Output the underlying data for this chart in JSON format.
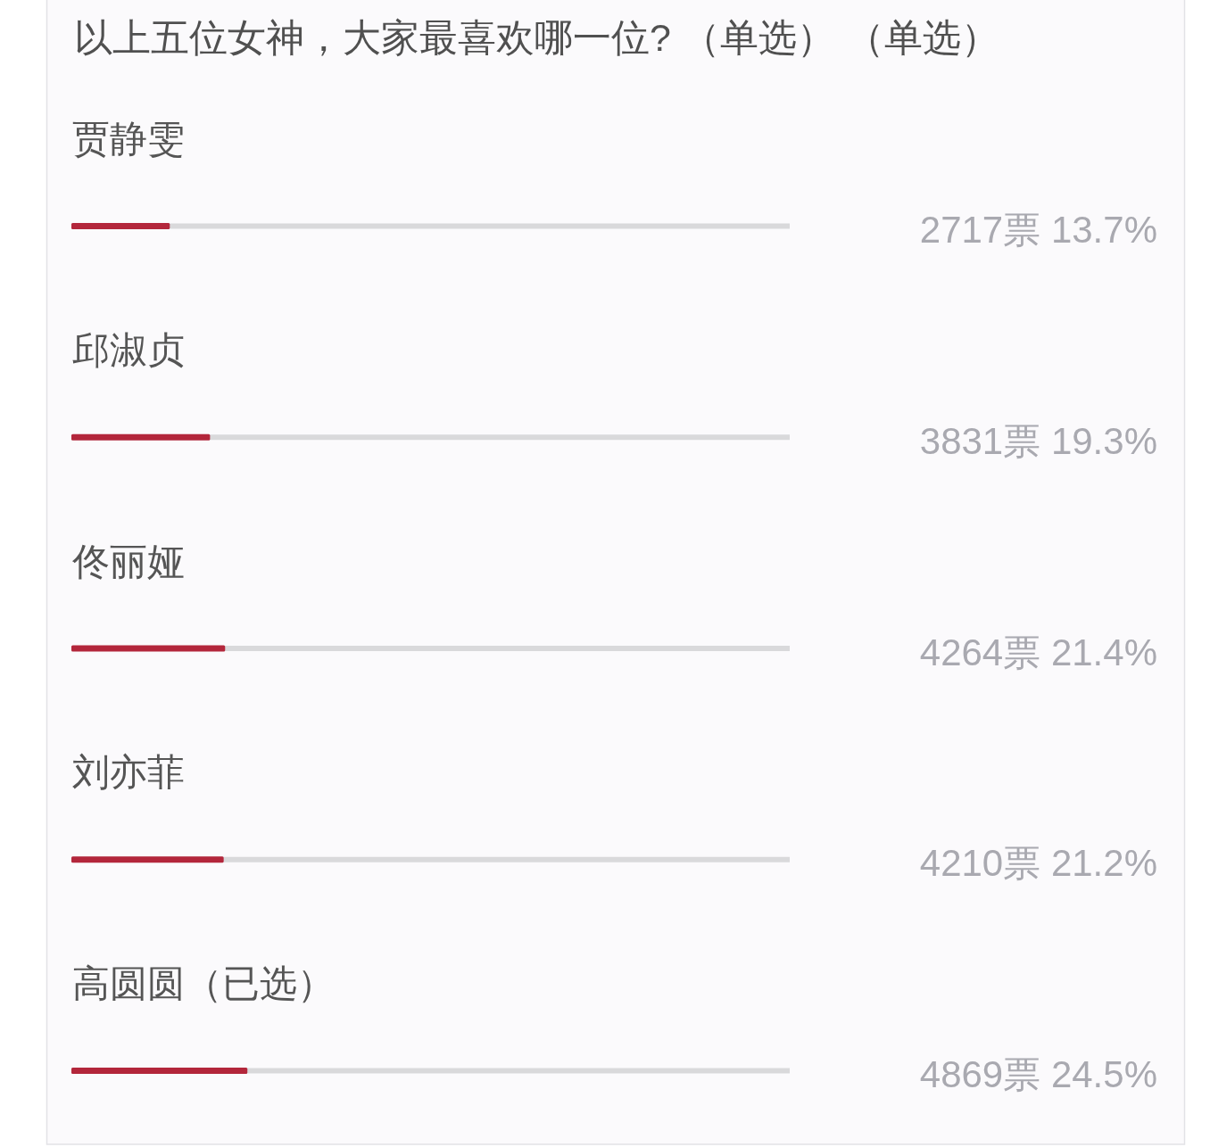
{
  "chart_data": {
    "type": "bar",
    "orientation": "horizontal",
    "title": "以上五位女神，大家最喜欢哪一位? （单选） （单选）",
    "categories": [
      "贾静雯",
      "邱淑贞",
      "佟丽娅",
      "刘亦菲",
      "高圆圆（已选）"
    ],
    "values": [
      13.7,
      19.3,
      21.4,
      21.2,
      24.5
    ],
    "color": "#b3263b",
    "xlim": [
      0,
      100
    ],
    "value_labels": [
      "2717票 13.7%",
      "3831票 19.3%",
      "4264票 21.4%",
      "4210票 21.2%",
      "4869票 24.5%"
    ]
  }
}
